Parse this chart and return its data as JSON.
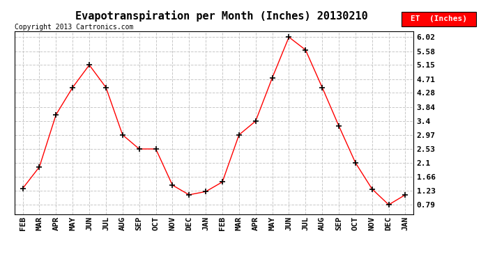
{
  "title": "Evapotranspiration per Month (Inches) 20130210",
  "copyright": "Copyright 2013 Cartronics.com",
  "legend_label": "ET  (Inches)",
  "x_labels": [
    "FEB",
    "MAR",
    "APR",
    "MAY",
    "JUN",
    "JUL",
    "AUG",
    "SEP",
    "OCT",
    "NOV",
    "DEC",
    "JAN",
    "FEB",
    "MAR",
    "APR",
    "MAY",
    "JUN",
    "JUL",
    "AUG",
    "SEP",
    "OCT",
    "NOV",
    "DEC",
    "JAN"
  ],
  "y_values": [
    1.3,
    1.97,
    3.6,
    4.45,
    5.15,
    4.45,
    2.97,
    2.53,
    2.53,
    1.4,
    1.1,
    1.2,
    1.5,
    2.97,
    3.4,
    4.75,
    6.02,
    5.62,
    4.45,
    3.25,
    2.1,
    1.28,
    0.79,
    1.1
  ],
  "y_ticks": [
    0.79,
    1.23,
    1.66,
    2.1,
    2.53,
    2.97,
    3.4,
    3.84,
    4.28,
    4.71,
    5.15,
    5.58,
    6.02
  ],
  "line_color": "red",
  "marker_color": "black",
  "marker": "+",
  "grid_color": "#c8c8c8",
  "bg_color": "white",
  "legend_bg": "red",
  "legend_text_color": "white",
  "title_fontsize": 11,
  "copyright_fontsize": 7,
  "tick_fontsize": 8,
  "legend_fontsize": 8,
  "ylim_min": 0.5,
  "ylim_max": 6.2
}
